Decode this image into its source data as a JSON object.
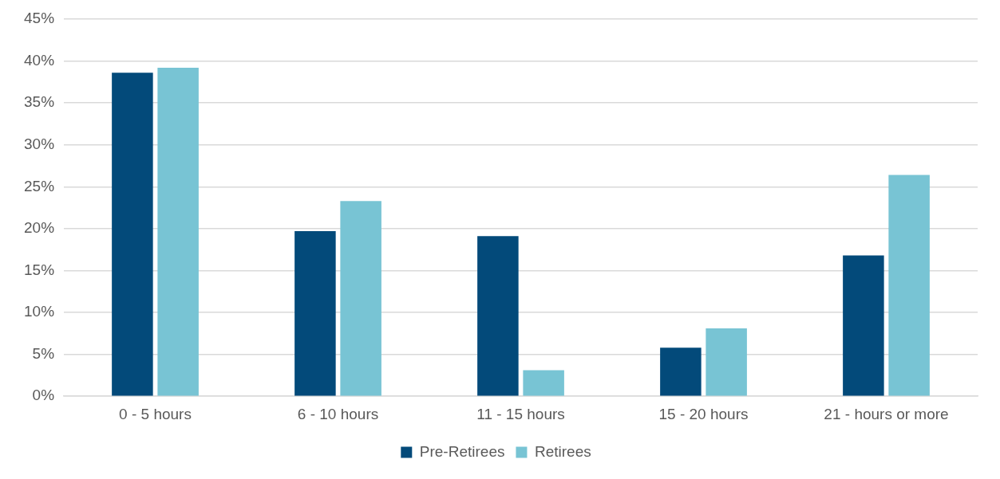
{
  "chart_data": {
    "type": "bar",
    "categories": [
      "0 - 5 hours",
      "6 - 10 hours",
      "11 - 15 hours",
      "15 - 20 hours",
      "21 - hours or more"
    ],
    "series": [
      {
        "name": "Pre-Retirees",
        "color": "#034a7a",
        "values": [
          38.6,
          19.7,
          19.1,
          5.8,
          16.8
        ]
      },
      {
        "name": "Retirees",
        "color": "#78c4d4",
        "values": [
          39.2,
          23.3,
          3.1,
          8.1,
          26.4
        ]
      }
    ],
    "ylim": [
      0,
      45
    ],
    "yticks": [
      {
        "value": 0,
        "label": "0%"
      },
      {
        "value": 5,
        "label": "5%"
      },
      {
        "value": 10,
        "label": "10%"
      },
      {
        "value": 15,
        "label": "15%"
      },
      {
        "value": 20,
        "label": "20%"
      },
      {
        "value": 25,
        "label": "25%"
      },
      {
        "value": 30,
        "label": "30%"
      },
      {
        "value": 35,
        "label": "35%"
      },
      {
        "value": 40,
        "label": "40%"
      },
      {
        "value": 45,
        "label": "45%"
      }
    ],
    "grid": "y",
    "legend": "bottom"
  }
}
